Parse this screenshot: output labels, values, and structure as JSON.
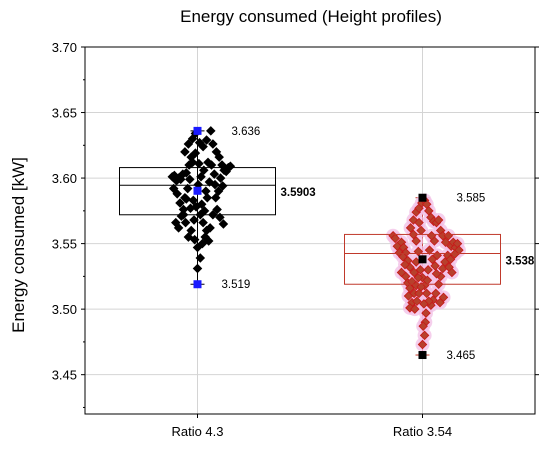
{
  "chart_data": {
    "type": "scatter",
    "title": "Energy consumed (Height profiles)",
    "ylabel": "Energy consumed [kW]",
    "xlabel": "",
    "ylim": [
      3.42,
      3.7
    ],
    "yticks": [
      "3.45",
      "3.50",
      "3.55",
      "3.60",
      "3.65",
      "3.70"
    ],
    "grid": true,
    "categories": [
      "Ratio 4.3",
      "Ratio 3.54"
    ],
    "series": [
      {
        "category": "Ratio 4.3",
        "marker_color": "#000000",
        "highlight_color": "#1a1aff",
        "box": {
          "q1": 3.572,
          "median": 3.5945,
          "q3": 3.608
        },
        "mean": 3.5903,
        "max": 3.636,
        "min": 3.519,
        "labels": {
          "max": "3.636",
          "mean": "3.5903",
          "min": "3.519"
        },
        "points": [
          [
            -0.36,
            3.601
          ],
          [
            -0.33,
            3.602
          ],
          [
            -0.3,
            3.598
          ],
          [
            -0.27,
            3.6
          ],
          [
            -0.24,
            3.599
          ],
          [
            -0.21,
            3.603
          ],
          [
            -0.34,
            3.592
          ],
          [
            -0.29,
            3.588
          ],
          [
            -0.25,
            3.581
          ],
          [
            -0.2,
            3.576
          ],
          [
            -0.31,
            3.566
          ],
          [
            -0.27,
            3.562
          ],
          [
            -0.23,
            3.571
          ],
          [
            -0.18,
            3.585
          ],
          [
            -0.14,
            3.592
          ],
          [
            -0.16,
            3.604
          ],
          [
            -0.12,
            3.61
          ],
          [
            -0.09,
            3.616
          ],
          [
            -0.18,
            3.62
          ],
          [
            -0.13,
            3.626
          ],
          [
            -0.07,
            3.63
          ],
          [
            -0.03,
            3.634
          ],
          [
            0.03,
            3.627
          ],
          [
            0.08,
            3.624
          ],
          [
            0.13,
            3.629
          ],
          [
            0.19,
            3.636
          ],
          [
            0.22,
            3.626
          ],
          [
            0.27,
            3.62
          ],
          [
            0.31,
            3.616
          ],
          [
            0.35,
            3.61
          ],
          [
            0.38,
            3.606
          ],
          [
            0.41,
            3.605
          ],
          [
            0.44,
            3.608
          ],
          [
            0.47,
            3.609
          ],
          [
            0.33,
            3.6
          ],
          [
            0.36,
            3.594
          ],
          [
            0.3,
            3.59
          ],
          [
            0.26,
            3.585
          ],
          [
            0.28,
            3.576
          ],
          [
            0.32,
            3.57
          ],
          [
            0.37,
            3.565
          ],
          [
            0.22,
            3.572
          ],
          [
            0.18,
            3.562
          ],
          [
            0.13,
            3.56
          ],
          [
            0.08,
            3.566
          ],
          [
            0.04,
            3.572
          ],
          [
            -0.02,
            3.578
          ],
          [
            -0.06,
            3.583
          ],
          [
            -0.1,
            3.577
          ],
          [
            -0.05,
            3.568
          ],
          [
            -0.09,
            3.56
          ],
          [
            -0.04,
            3.553
          ],
          [
            0.0,
            3.547
          ],
          [
            0.04,
            3.539
          ],
          [
            0.07,
            3.55
          ],
          [
            0.11,
            3.555
          ],
          [
            0.16,
            3.552
          ],
          [
            -0.13,
            3.555
          ],
          [
            -0.17,
            3.566
          ],
          [
            -0.2,
            3.572
          ],
          [
            0.01,
            3.595
          ],
          [
            0.05,
            3.601
          ],
          [
            0.09,
            3.606
          ],
          [
            0.15,
            3.612
          ],
          [
            0.2,
            3.61
          ],
          [
            0.24,
            3.603
          ],
          [
            0.17,
            3.597
          ],
          [
            0.12,
            3.59
          ],
          [
            -0.07,
            3.612
          ],
          [
            -0.11,
            3.599
          ],
          [
            -0.03,
            3.619
          ],
          [
            0.0,
            3.531
          ],
          [
            0.06,
            3.58
          ],
          [
            0.1,
            3.575
          ],
          [
            0.14,
            3.585
          ],
          [
            -0.16,
            3.584
          ],
          [
            0.02,
            3.611
          ],
          [
            0.25,
            3.595
          ]
        ],
        "highlights": [
          [
            0.0,
            3.636
          ],
          [
            0.0,
            3.5903
          ],
          [
            0.0,
            3.519
          ]
        ]
      },
      {
        "category": "Ratio 3.54",
        "marker_color": "#b8402c",
        "marker_edge_color": "#c71818",
        "glow_color": "#f2bfe6",
        "highlight_color": "#000000",
        "box": {
          "q1": 3.519,
          "median": 3.5425,
          "q3": 3.557
        },
        "mean": 3.538,
        "max": 3.585,
        "min": 3.465,
        "labels": {
          "max": "3.585",
          "mean": "3.538",
          "min": "3.465"
        },
        "points": [
          [
            -0.42,
            3.556
          ],
          [
            -0.39,
            3.554
          ],
          [
            -0.36,
            3.548
          ],
          [
            -0.33,
            3.543
          ],
          [
            -0.3,
            3.551
          ],
          [
            -0.27,
            3.547
          ],
          [
            -0.24,
            3.543
          ],
          [
            -0.21,
            3.537
          ],
          [
            -0.18,
            3.532
          ],
          [
            -0.24,
            3.525
          ],
          [
            -0.21,
            3.52
          ],
          [
            -0.18,
            3.516
          ],
          [
            -0.15,
            3.521
          ],
          [
            -0.12,
            3.528
          ],
          [
            -0.09,
            3.536
          ],
          [
            -0.06,
            3.544
          ],
          [
            -0.09,
            3.552
          ],
          [
            -0.13,
            3.557
          ],
          [
            -0.17,
            3.562
          ],
          [
            -0.13,
            3.568
          ],
          [
            -0.09,
            3.574
          ],
          [
            -0.05,
            3.577
          ],
          [
            -0.01,
            3.581
          ],
          [
            0.03,
            3.583
          ],
          [
            0.06,
            3.58
          ],
          [
            0.09,
            3.575
          ],
          [
            0.12,
            3.57
          ],
          [
            0.16,
            3.567
          ],
          [
            0.2,
            3.566
          ],
          [
            0.23,
            3.568
          ],
          [
            0.26,
            3.56
          ],
          [
            0.29,
            3.556
          ],
          [
            0.33,
            3.551
          ],
          [
            0.37,
            3.556
          ],
          [
            0.41,
            3.548
          ],
          [
            0.44,
            3.551
          ],
          [
            0.47,
            3.547
          ],
          [
            0.5,
            3.55
          ],
          [
            0.52,
            3.545
          ],
          [
            0.36,
            3.541
          ],
          [
            0.32,
            3.536
          ],
          [
            0.29,
            3.531
          ],
          [
            0.26,
            3.525
          ],
          [
            0.23,
            3.519
          ],
          [
            0.19,
            3.512
          ],
          [
            0.15,
            3.507
          ],
          [
            0.12,
            3.503
          ],
          [
            0.09,
            3.506
          ],
          [
            0.06,
            3.512
          ],
          [
            0.03,
            3.518
          ],
          [
            0.0,
            3.524
          ],
          [
            -0.03,
            3.53
          ],
          [
            -0.06,
            3.524
          ],
          [
            -0.09,
            3.518
          ],
          [
            -0.12,
            3.512
          ],
          [
            -0.15,
            3.505
          ],
          [
            -0.18,
            3.501
          ],
          [
            -0.11,
            3.5
          ],
          [
            -0.08,
            3.506
          ],
          [
            -0.05,
            3.512
          ],
          [
            -0.02,
            3.517
          ],
          [
            0.02,
            3.504
          ],
          [
            0.05,
            3.497
          ],
          [
            0.04,
            3.49
          ],
          [
            0.01,
            3.487
          ],
          [
            0.03,
            3.48
          ],
          [
            0.0,
            3.473
          ],
          [
            0.1,
            3.545
          ],
          [
            0.14,
            3.538
          ],
          [
            0.18,
            3.533
          ],
          [
            0.21,
            3.541
          ],
          [
            0.08,
            3.53
          ],
          [
            -0.28,
            3.54
          ],
          [
            -0.25,
            3.534
          ],
          [
            0.38,
            3.532
          ],
          [
            0.42,
            3.528
          ],
          [
            0.17,
            3.552
          ],
          [
            0.13,
            3.556
          ],
          [
            -0.02,
            3.56
          ],
          [
            -0.05,
            3.566
          ],
          [
            0.4,
            3.538
          ],
          [
            0.25,
            3.505
          ],
          [
            0.3,
            3.509
          ],
          [
            -0.2,
            3.51
          ],
          [
            0.07,
            3.522
          ],
          [
            0.2,
            3.527
          ],
          [
            -0.3,
            3.528
          ],
          [
            0.46,
            3.542
          ]
        ],
        "highlights": [
          [
            0.0,
            3.585
          ],
          [
            0.0,
            3.538
          ],
          [
            0.0,
            3.465
          ]
        ]
      }
    ]
  }
}
